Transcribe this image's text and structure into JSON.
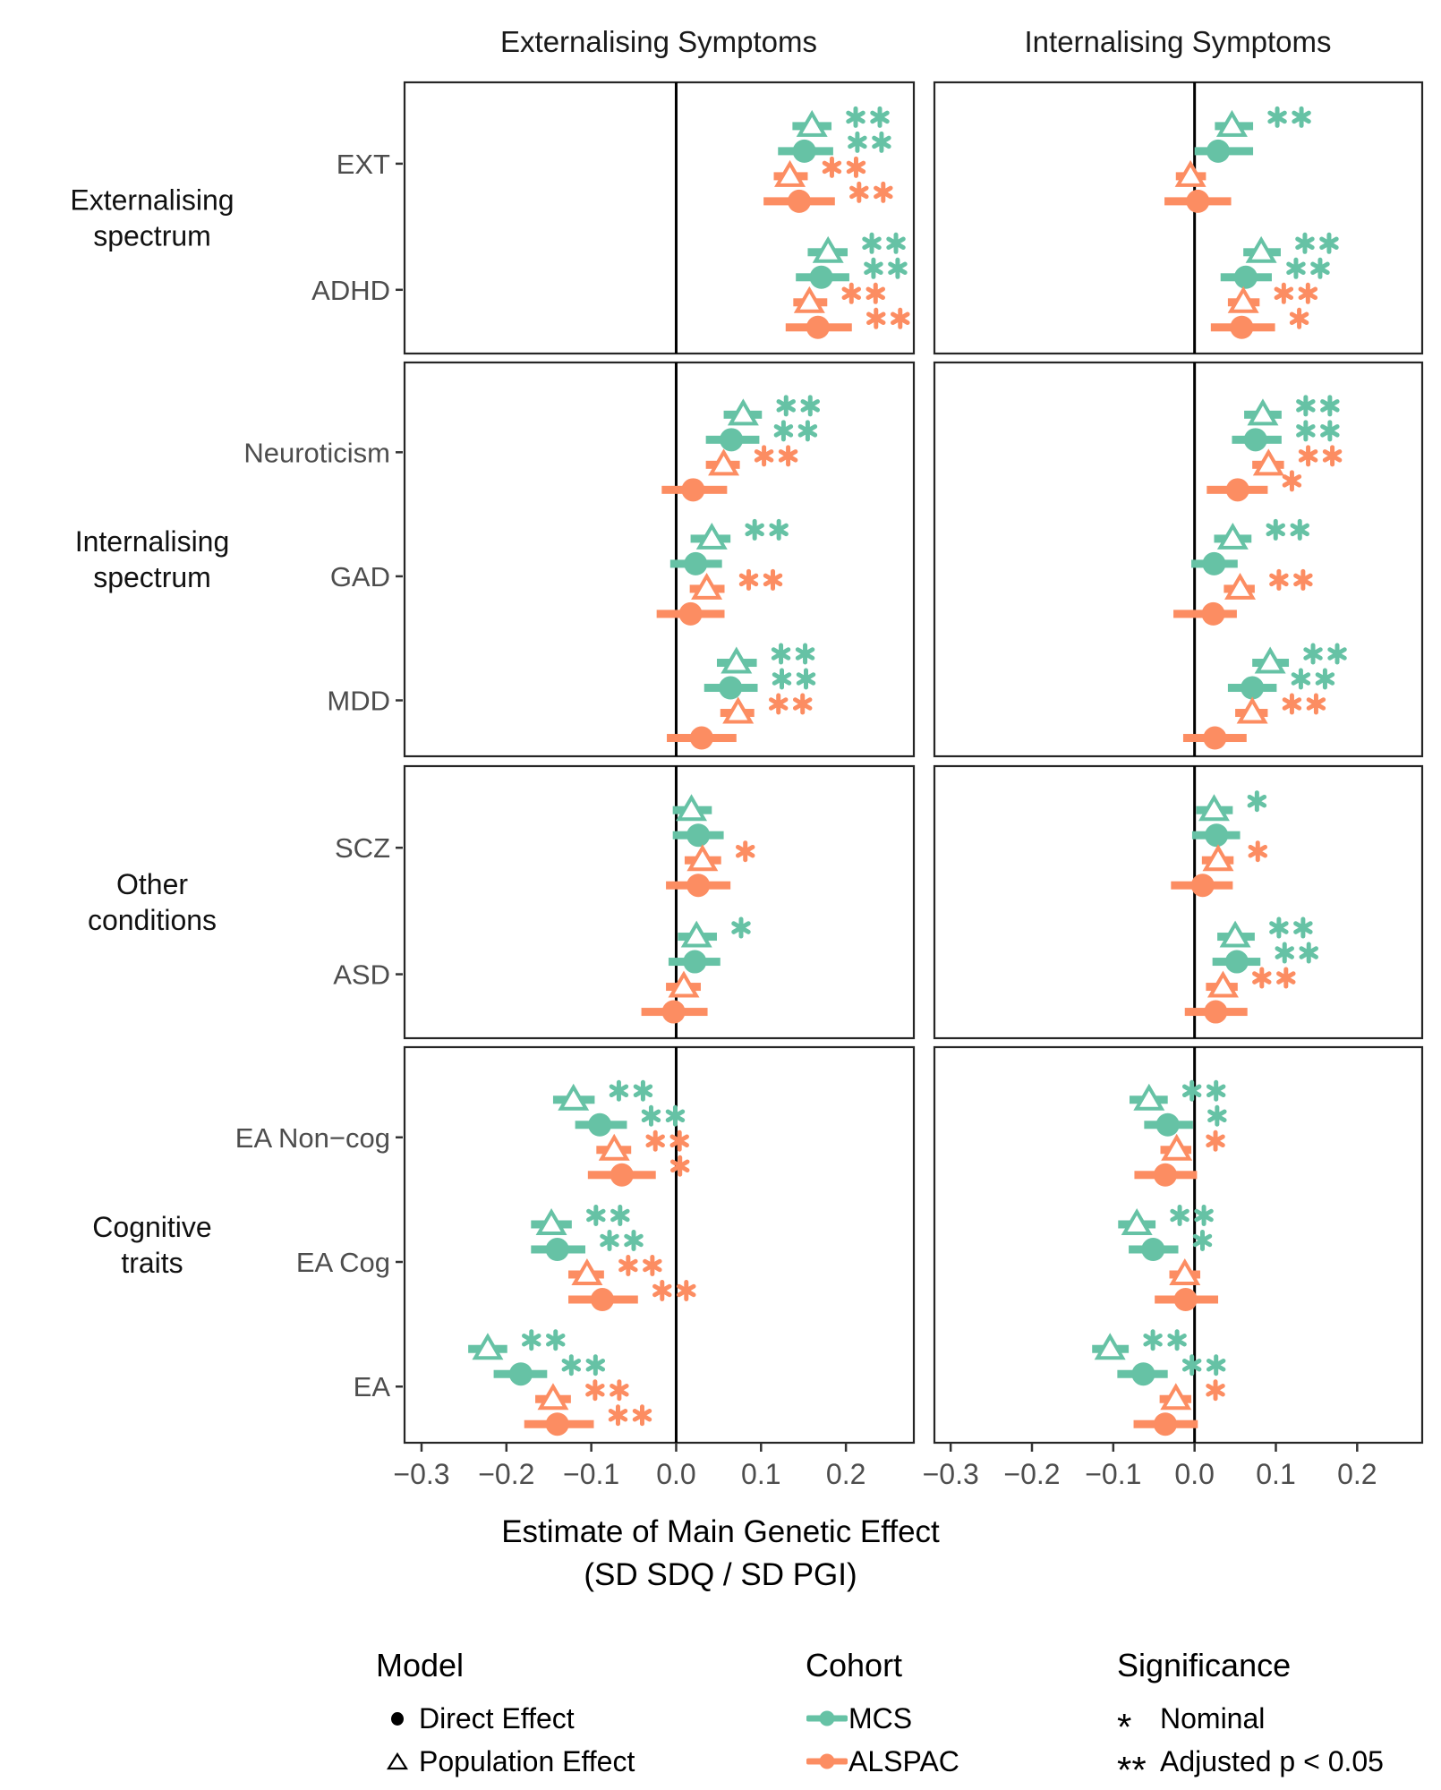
{
  "chart_data": {
    "type": "scatter",
    "subtype": "faceted-forest-plot",
    "columns": [
      "Externalising Symptoms",
      "Internalising Symptoms"
    ],
    "x_axis": {
      "title_lines": [
        "Estimate of Main Genetic Effect",
        "(SD SDQ / SD PGI)"
      ],
      "tick_labels": [
        "−0.3",
        "−0.2",
        "−0.1",
        "0.0",
        "0.1",
        "0.2"
      ],
      "tick_values": [
        -0.3,
        -0.2,
        -0.1,
        0.0,
        0.1,
        0.2
      ],
      "domain": [
        -0.32,
        0.28
      ],
      "zero_line": 0
    },
    "series": [
      {
        "cohort": "MCS",
        "model": "Population Effect",
        "marker": "triangle",
        "color": "#66C2A5"
      },
      {
        "cohort": "MCS",
        "model": "Direct Effect",
        "marker": "circle",
        "color": "#66C2A5"
      },
      {
        "cohort": "ALSPAC",
        "model": "Population Effect",
        "marker": "triangle",
        "color": "#FC8D62"
      },
      {
        "cohort": "ALSPAC",
        "model": "Direct Effect",
        "marker": "circle",
        "color": "#FC8D62"
      }
    ],
    "significance_codes": {
      "*": "Nominal",
      "**": "Adjusted p < 0.05"
    },
    "groups": [
      {
        "label_lines": [
          "Externalising",
          "spectrum"
        ],
        "traits": [
          {
            "name": "EXT",
            "estimates": {
              "externalising": [
                {
                  "est": 0.16,
                  "lo": 0.137,
                  "hi": 0.183,
                  "sig": "**"
                },
                {
                  "est": 0.151,
                  "lo": 0.12,
                  "hi": 0.185,
                  "sig": "**"
                },
                {
                  "est": 0.134,
                  "lo": 0.115,
                  "hi": 0.155,
                  "sig": "**"
                },
                {
                  "est": 0.145,
                  "lo": 0.103,
                  "hi": 0.187,
                  "sig": "**"
                }
              ],
              "internalising": [
                {
                  "est": 0.046,
                  "lo": 0.025,
                  "hi": 0.072,
                  "sig": "**"
                },
                {
                  "est": 0.029,
                  "lo": 0.0,
                  "hi": 0.072,
                  "sig": ""
                },
                {
                  "est": -0.005,
                  "lo": -0.023,
                  "hi": 0.014,
                  "sig": ""
                },
                {
                  "est": 0.004,
                  "lo": -0.037,
                  "hi": 0.045,
                  "sig": ""
                }
              ]
            }
          },
          {
            "name": "ADHD",
            "estimates": {
              "externalising": [
                {
                  "est": 0.179,
                  "lo": 0.155,
                  "hi": 0.202,
                  "sig": "**"
                },
                {
                  "est": 0.171,
                  "lo": 0.141,
                  "hi": 0.204,
                  "sig": "**"
                },
                {
                  "est": 0.157,
                  "lo": 0.138,
                  "hi": 0.178,
                  "sig": "**"
                },
                {
                  "est": 0.167,
                  "lo": 0.129,
                  "hi": 0.207,
                  "sig": "**"
                }
              ],
              "internalising": [
                {
                  "est": 0.082,
                  "lo": 0.06,
                  "hi": 0.106,
                  "sig": "**"
                },
                {
                  "est": 0.063,
                  "lo": 0.032,
                  "hi": 0.095,
                  "sig": "**"
                },
                {
                  "est": 0.06,
                  "lo": 0.041,
                  "hi": 0.08,
                  "sig": "**"
                },
                {
                  "est": 0.058,
                  "lo": 0.02,
                  "hi": 0.099,
                  "sig": "*"
                }
              ]
            }
          }
        ]
      },
      {
        "label_lines": [
          "Internalising",
          "spectrum"
        ],
        "traits": [
          {
            "name": "Neuroticism",
            "estimates": {
              "externalising": [
                {
                  "est": 0.079,
                  "lo": 0.056,
                  "hi": 0.101,
                  "sig": "**"
                },
                {
                  "est": 0.065,
                  "lo": 0.035,
                  "hi": 0.098,
                  "sig": "**"
                },
                {
                  "est": 0.056,
                  "lo": 0.035,
                  "hi": 0.075,
                  "sig": "**"
                },
                {
                  "est": 0.02,
                  "lo": -0.017,
                  "hi": 0.06,
                  "sig": ""
                }
              ],
              "internalising": [
                {
                  "est": 0.084,
                  "lo": 0.061,
                  "hi": 0.107,
                  "sig": "**"
                },
                {
                  "est": 0.075,
                  "lo": 0.046,
                  "hi": 0.107,
                  "sig": "**"
                },
                {
                  "est": 0.091,
                  "lo": 0.071,
                  "hi": 0.11,
                  "sig": "**"
                },
                {
                  "est": 0.053,
                  "lo": 0.015,
                  "hi": 0.09,
                  "sig": "*"
                }
              ]
            }
          },
          {
            "name": "GAD",
            "estimates": {
              "externalising": [
                {
                  "est": 0.042,
                  "lo": 0.017,
                  "hi": 0.064,
                  "sig": "**"
                },
                {
                  "est": 0.023,
                  "lo": -0.007,
                  "hi": 0.054,
                  "sig": ""
                },
                {
                  "est": 0.036,
                  "lo": 0.016,
                  "hi": 0.057,
                  "sig": "**"
                },
                {
                  "est": 0.017,
                  "lo": -0.023,
                  "hi": 0.057,
                  "sig": ""
                }
              ],
              "internalising": [
                {
                  "est": 0.047,
                  "lo": 0.024,
                  "hi": 0.07,
                  "sig": "**"
                },
                {
                  "est": 0.024,
                  "lo": -0.004,
                  "hi": 0.053,
                  "sig": ""
                },
                {
                  "est": 0.056,
                  "lo": 0.036,
                  "hi": 0.074,
                  "sig": "**"
                },
                {
                  "est": 0.023,
                  "lo": -0.026,
                  "hi": 0.052,
                  "sig": ""
                }
              ]
            }
          },
          {
            "name": "MDD",
            "estimates": {
              "externalising": [
                {
                  "est": 0.071,
                  "lo": 0.048,
                  "hi": 0.095,
                  "sig": "**"
                },
                {
                  "est": 0.064,
                  "lo": 0.033,
                  "hi": 0.096,
                  "sig": "**"
                },
                {
                  "est": 0.073,
                  "lo": 0.052,
                  "hi": 0.092,
                  "sig": "**"
                },
                {
                  "est": 0.03,
                  "lo": -0.011,
                  "hi": 0.071,
                  "sig": ""
                }
              ],
              "internalising": [
                {
                  "est": 0.093,
                  "lo": 0.071,
                  "hi": 0.116,
                  "sig": "**"
                },
                {
                  "est": 0.071,
                  "lo": 0.041,
                  "hi": 0.101,
                  "sig": "**"
                },
                {
                  "est": 0.071,
                  "lo": 0.05,
                  "hi": 0.09,
                  "sig": "**"
                },
                {
                  "est": 0.025,
                  "lo": -0.014,
                  "hi": 0.064,
                  "sig": ""
                }
              ]
            }
          }
        ]
      },
      {
        "label_lines": [
          "Other",
          "conditions"
        ],
        "traits": [
          {
            "name": "SCZ",
            "estimates": {
              "externalising": [
                {
                  "est": 0.018,
                  "lo": -0.004,
                  "hi": 0.042,
                  "sig": ""
                },
                {
                  "est": 0.026,
                  "lo": -0.004,
                  "hi": 0.056,
                  "sig": ""
                },
                {
                  "est": 0.031,
                  "lo": 0.01,
                  "hi": 0.053,
                  "sig": "*"
                },
                {
                  "est": 0.026,
                  "lo": -0.012,
                  "hi": 0.064,
                  "sig": ""
                }
              ],
              "internalising": [
                {
                  "est": 0.024,
                  "lo": 0.002,
                  "hi": 0.047,
                  "sig": "*"
                },
                {
                  "est": 0.027,
                  "lo": -0.003,
                  "hi": 0.056,
                  "sig": ""
                },
                {
                  "est": 0.029,
                  "lo": 0.009,
                  "hi": 0.048,
                  "sig": "*"
                },
                {
                  "est": 0.01,
                  "lo": -0.029,
                  "hi": 0.047,
                  "sig": ""
                }
              ]
            }
          },
          {
            "name": "ASD",
            "estimates": {
              "externalising": [
                {
                  "est": 0.024,
                  "lo": 0.002,
                  "hi": 0.048,
                  "sig": "*"
                },
                {
                  "est": 0.022,
                  "lo": -0.009,
                  "hi": 0.052,
                  "sig": ""
                },
                {
                  "est": 0.009,
                  "lo": -0.012,
                  "hi": 0.029,
                  "sig": ""
                },
                {
                  "est": -0.003,
                  "lo": -0.041,
                  "hi": 0.037,
                  "sig": ""
                }
              ],
              "internalising": [
                {
                  "est": 0.05,
                  "lo": 0.028,
                  "hi": 0.074,
                  "sig": "**"
                },
                {
                  "est": 0.052,
                  "lo": 0.022,
                  "hi": 0.081,
                  "sig": "**"
                },
                {
                  "est": 0.035,
                  "lo": 0.014,
                  "hi": 0.053,
                  "sig": "**"
                },
                {
                  "est": 0.026,
                  "lo": -0.012,
                  "hi": 0.065,
                  "sig": ""
                }
              ]
            }
          }
        ]
      },
      {
        "label_lines": [
          "Cognitive",
          "traits"
        ],
        "traits": [
          {
            "name": "EA Non−cog",
            "estimates": {
              "externalising": [
                {
                  "est": -0.121,
                  "lo": -0.145,
                  "hi": -0.096,
                  "sig": "**"
                },
                {
                  "est": -0.09,
                  "lo": -0.119,
                  "hi": -0.058,
                  "sig": "**"
                },
                {
                  "est": -0.073,
                  "lo": -0.094,
                  "hi": -0.053,
                  "sig": "**"
                },
                {
                  "est": -0.064,
                  "lo": -0.104,
                  "hi": -0.024,
                  "sig": "*"
                }
              ],
              "internalising": [
                {
                  "est": -0.056,
                  "lo": -0.08,
                  "hi": -0.033,
                  "sig": "**"
                },
                {
                  "est": -0.033,
                  "lo": -0.062,
                  "hi": -0.002,
                  "sig": "*"
                },
                {
                  "est": -0.022,
                  "lo": -0.042,
                  "hi": -0.004,
                  "sig": "*"
                },
                {
                  "est": -0.036,
                  "lo": -0.074,
                  "hi": 0.003,
                  "sig": ""
                }
              ]
            }
          },
          {
            "name": "EA Cog",
            "estimates": {
              "externalising": [
                {
                  "est": -0.147,
                  "lo": -0.171,
                  "hi": -0.123,
                  "sig": "**"
                },
                {
                  "est": -0.14,
                  "lo": -0.171,
                  "hi": -0.107,
                  "sig": "**"
                },
                {
                  "est": -0.105,
                  "lo": -0.127,
                  "hi": -0.085,
                  "sig": "**"
                },
                {
                  "est": -0.087,
                  "lo": -0.127,
                  "hi": -0.045,
                  "sig": "**"
                }
              ],
              "internalising": [
                {
                  "est": -0.071,
                  "lo": -0.094,
                  "hi": -0.048,
                  "sig": "**"
                },
                {
                  "est": -0.051,
                  "lo": -0.081,
                  "hi": -0.02,
                  "sig": "*"
                },
                {
                  "est": -0.012,
                  "lo": -0.031,
                  "hi": 0.007,
                  "sig": ""
                },
                {
                  "est": -0.011,
                  "lo": -0.049,
                  "hi": 0.029,
                  "sig": ""
                }
              ]
            }
          },
          {
            "name": "EA",
            "estimates": {
              "externalising": [
                {
                  "est": -0.222,
                  "lo": -0.245,
                  "hi": -0.199,
                  "sig": "**"
                },
                {
                  "est": -0.183,
                  "lo": -0.215,
                  "hi": -0.152,
                  "sig": "**"
                },
                {
                  "est": -0.145,
                  "lo": -0.166,
                  "hi": -0.124,
                  "sig": "**"
                },
                {
                  "est": -0.14,
                  "lo": -0.179,
                  "hi": -0.097,
                  "sig": "**"
                }
              ],
              "internalising": [
                {
                  "est": -0.104,
                  "lo": -0.126,
                  "hi": -0.081,
                  "sig": "**"
                },
                {
                  "est": -0.063,
                  "lo": -0.095,
                  "hi": -0.033,
                  "sig": "**"
                },
                {
                  "est": -0.023,
                  "lo": -0.043,
                  "hi": -0.004,
                  "sig": "*"
                },
                {
                  "est": -0.036,
                  "lo": -0.075,
                  "hi": 0.004,
                  "sig": ""
                }
              ]
            }
          }
        ]
      }
    ]
  },
  "legend": {
    "model": {
      "title": "Model",
      "items": [
        {
          "glyph": "circle",
          "label": "Direct Effect"
        },
        {
          "glyph": "triangle",
          "label": "Population Effect"
        }
      ]
    },
    "cohort": {
      "title": "Cohort",
      "items": [
        {
          "label": "MCS",
          "color": "#66C2A5"
        },
        {
          "label": "ALSPAC",
          "color": "#FC8D62"
        }
      ]
    },
    "significance": {
      "title": "Significance",
      "items": [
        {
          "symbol": "*",
          "label": "Nominal"
        },
        {
          "symbol": "**",
          "label": "Adjusted p < 0.05"
        }
      ]
    }
  }
}
